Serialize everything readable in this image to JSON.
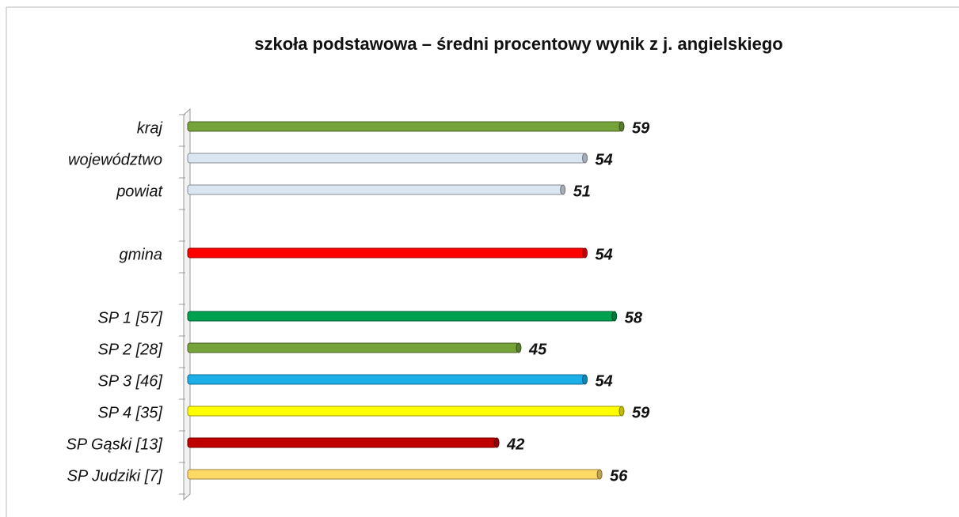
{
  "chart_data": {
    "type": "hbar",
    "title": "szkoła podstawowa – średni procentowy wynik z j. angielskiego",
    "categories": [
      "kraj",
      "województwo",
      "powiat",
      null,
      "gmina",
      null,
      "SP 1 [57]",
      "SP 2 [28]",
      "SP 3 [46]",
      "SP 4 [35]",
      "SP Gąski [13]",
      "SP Judziki [7]"
    ],
    "values": [
      59,
      54,
      51,
      null,
      54,
      null,
      58,
      45,
      54,
      59,
      42,
      56
    ],
    "colors": [
      "#77a43a",
      "#dce6f2",
      "#dce6f2",
      null,
      "#ff0000",
      null,
      "#00a050",
      "#77a43a",
      "#1cb0ea",
      "#ffff00",
      "#c00000",
      "#ffd966"
    ]
  }
}
